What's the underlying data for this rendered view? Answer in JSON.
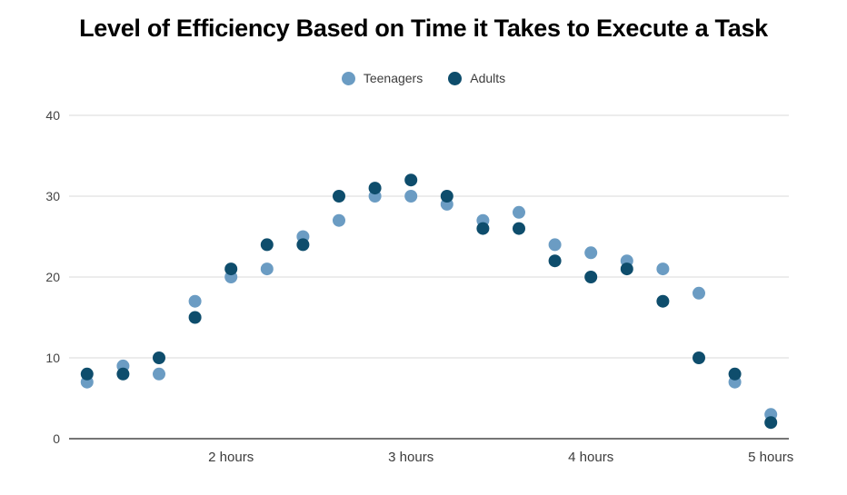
{
  "title": "Level of Efficiency Based on Time it Takes to Execute a Task",
  "legend": [
    {
      "label": "Teenagers",
      "color": "#6b9cc3"
    },
    {
      "label": "Adults",
      "color": "#0e4d6c"
    }
  ],
  "chart_data": {
    "type": "scatter",
    "title": "Level of Efficiency Based on Time it Takes to Execute a Task",
    "xlabel": "",
    "ylabel": "",
    "x": [
      1.2,
      1.4,
      1.6,
      1.8,
      2.0,
      2.2,
      2.4,
      2.6,
      2.8,
      3.0,
      3.2,
      3.4,
      3.6,
      3.8,
      4.0,
      4.2,
      4.4,
      4.6,
      4.8,
      5.0
    ],
    "series": [
      {
        "name": "Teenagers",
        "color": "#6b9cc3",
        "values": [
          7,
          9,
          8,
          17,
          20,
          21,
          25,
          27,
          30,
          30,
          29,
          27,
          28,
          24,
          23,
          22,
          21,
          18,
          7,
          3
        ]
      },
      {
        "name": "Adults",
        "color": "#0e4d6c",
        "values": [
          8,
          8,
          10,
          15,
          21,
          24,
          24,
          30,
          31,
          32,
          30,
          26,
          26,
          22,
          20,
          21,
          17,
          10,
          8,
          2
        ]
      }
    ],
    "xticks": [
      {
        "value": 2,
        "label": "2 hours"
      },
      {
        "value": 3,
        "label": "3 hours"
      },
      {
        "value": 4,
        "label": "4 hours"
      },
      {
        "value": 5,
        "label": "5 hours"
      }
    ],
    "yticks": [
      {
        "value": 0,
        "label": "0"
      },
      {
        "value": 10,
        "label": "10"
      },
      {
        "value": 20,
        "label": "20"
      },
      {
        "value": 30,
        "label": "30"
      },
      {
        "value": 40,
        "label": "40"
      }
    ],
    "xlim": [
      1.1,
      5.1
    ],
    "ylim": [
      0,
      40
    ],
    "grid": "horizontal",
    "gridline_color": "#d9d9d9",
    "axisline_color": "#757575",
    "legend_position": "top"
  }
}
